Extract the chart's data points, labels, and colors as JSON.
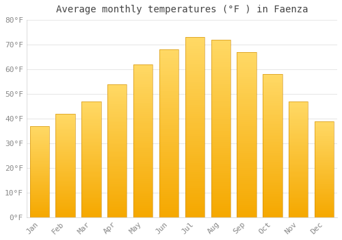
{
  "months": [
    "Jan",
    "Feb",
    "Mar",
    "Apr",
    "May",
    "Jun",
    "Jul",
    "Aug",
    "Sep",
    "Oct",
    "Nov",
    "Dec"
  ],
  "values": [
    37,
    42,
    47,
    54,
    62,
    68,
    73,
    72,
    67,
    58,
    47,
    39
  ],
  "bar_color_bottom": "#F5A800",
  "bar_color_top": "#FFD966",
  "title": "Average monthly temperatures (°F ) in Faenza",
  "ylim": [
    0,
    80
  ],
  "yticks": [
    0,
    10,
    20,
    30,
    40,
    50,
    60,
    70,
    80
  ],
  "ylabel_format": "°F",
  "background_color": "#ffffff",
  "grid_color": "#e8e8e8",
  "title_fontsize": 10,
  "tick_fontsize": 8,
  "bar_width": 0.75
}
